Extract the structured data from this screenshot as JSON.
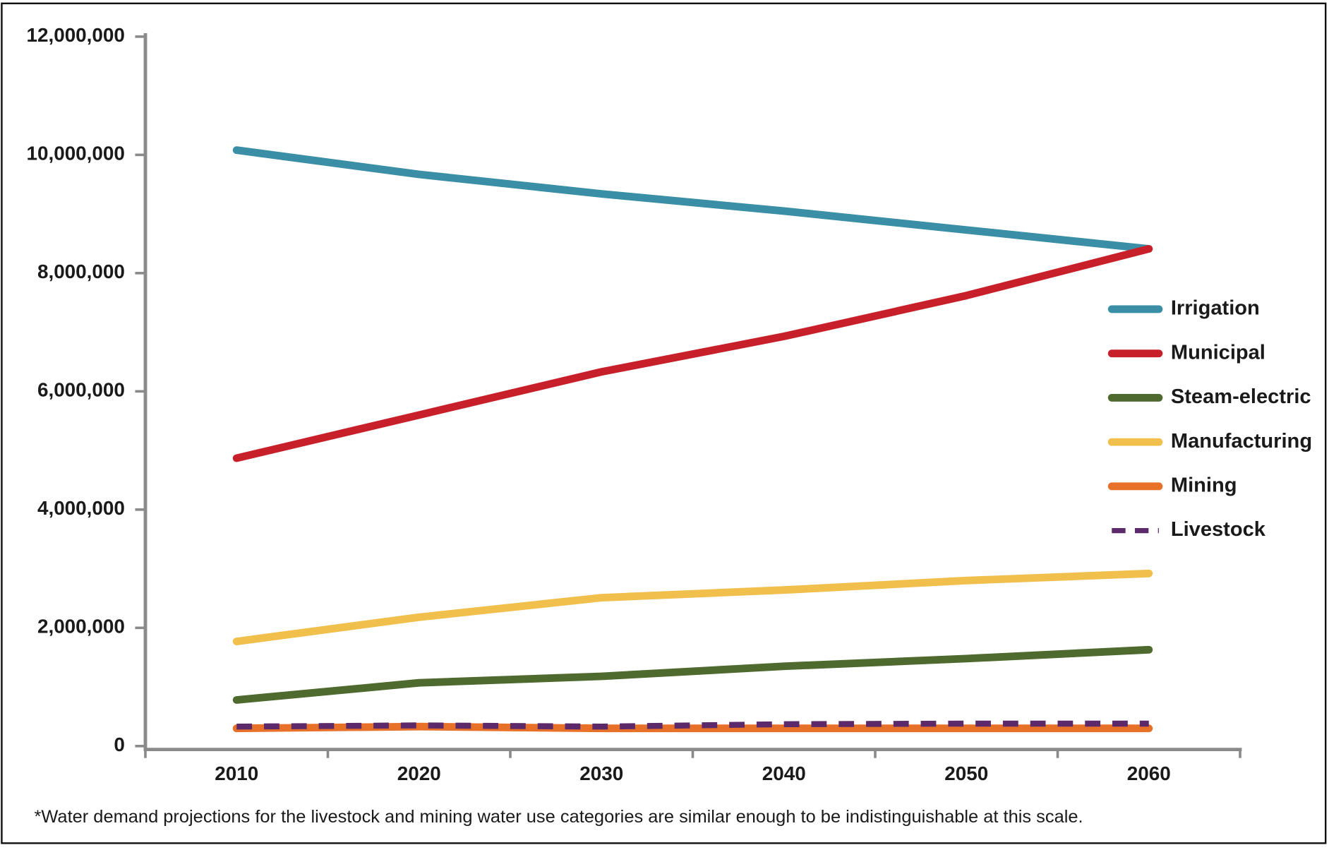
{
  "chart_data": {
    "type": "line",
    "categories": [
      "2010",
      "2020",
      "2030",
      "2040",
      "2050",
      "2060"
    ],
    "series": [
      {
        "name": "Irrigation",
        "color": "#3a8ea5",
        "values": [
          10080000,
          9670000,
          9340000,
          9050000,
          8730000,
          8410000
        ]
      },
      {
        "name": "Municipal",
        "color": "#c8202a",
        "values": [
          4870000,
          5600000,
          6330000,
          6930000,
          7620000,
          8410000
        ]
      },
      {
        "name": "Steam-electric",
        "color": "#4e6a2e",
        "values": [
          780000,
          1070000,
          1180000,
          1350000,
          1480000,
          1630000
        ]
      },
      {
        "name": "Manufacturing",
        "color": "#f1bf4c",
        "values": [
          1770000,
          2180000,
          2510000,
          2640000,
          2800000,
          2920000
        ]
      },
      {
        "name": "Mining",
        "color": "#e8712a",
        "values": [
          300000,
          330000,
          300000,
          300000,
          300000,
          300000
        ]
      },
      {
        "name": "Livestock",
        "color": "#5c2a6b",
        "dashed": true,
        "values": [
          330000,
          350000,
          330000,
          370000,
          380000,
          380000
        ]
      }
    ],
    "ylim": [
      0,
      12000000
    ],
    "yticks": [
      0,
      {
        "value": 2000000,
        "label": "2,000,000"
      },
      {
        "value": 4000000,
        "label": "4,000,000"
      },
      {
        "value": 6000000,
        "label": "6,000,000"
      },
      {
        "value": 8000000,
        "label": "8,000,000"
      },
      {
        "value": 10000000,
        "label": "10,000,000"
      },
      {
        "value": 12000000,
        "label": "12,000,000"
      }
    ],
    "legend": "right",
    "footnote": "*Water demand projections for the livestock and mining water use categories are similar enough to be indistinguishable at this scale."
  }
}
